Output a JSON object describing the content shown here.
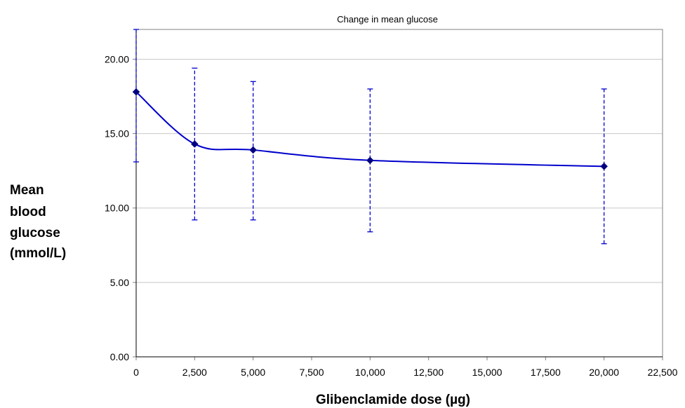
{
  "chart_data": {
    "type": "line",
    "title": "Change in mean glucose",
    "xlabel": "Glibenclamide dose (µg)",
    "ylabel": [
      "Mean",
      "blood",
      "glucose",
      "(mmol/L)"
    ],
    "x_ticks": [
      "0",
      "2,500",
      "5,000",
      "7,500",
      "10,000",
      "12,500",
      "15,000",
      "17,500",
      "20,000",
      "22,500"
    ],
    "y_ticks": [
      "0.00",
      "5.00",
      "10.00",
      "15.00",
      "20.00"
    ],
    "xlim": [
      0,
      22500
    ],
    "ylim": [
      0,
      22
    ],
    "x_tick_values": [
      0,
      2500,
      5000,
      7500,
      10000,
      12500,
      15000,
      17500,
      20000,
      22500
    ],
    "y_tick_values": [
      0,
      5,
      10,
      15,
      20
    ],
    "grid": true,
    "series": [
      {
        "color": "#0000cc",
        "marker_color": "#000080",
        "x": [
          0,
          2500,
          5000,
          10000,
          20000
        ],
        "y": [
          17.8,
          14.3,
          13.9,
          13.2,
          12.8
        ],
        "error_low": [
          13.1,
          9.2,
          9.2,
          8.4,
          7.6
        ],
        "error_high": [
          22.0,
          19.4,
          18.5,
          18.0,
          18.0
        ]
      }
    ]
  }
}
